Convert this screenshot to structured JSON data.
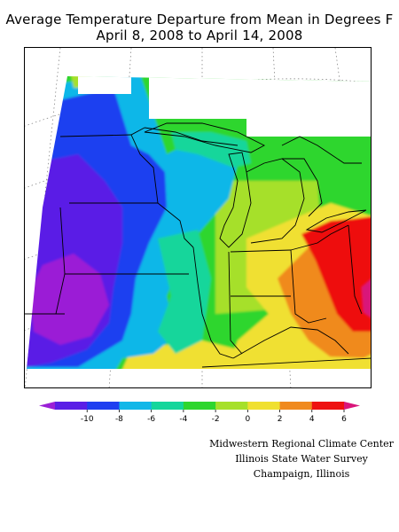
{
  "title_line1": "Average Temperature Departure from Mean in Degrees F",
  "title_line2": "April 8, 2008 to April 14, 2008",
  "legend": {
    "colors": [
      "#9b1fd6",
      "#5a1fe6",
      "#1f3ff0",
      "#11b7e8",
      "#14d69b",
      "#2ed62e",
      "#a6e02a",
      "#f0e030",
      "#f08a1f",
      "#ee1111",
      "#d9157a"
    ],
    "ticks": [
      "-10",
      "-8",
      "-6",
      "-4",
      "-2",
      "0",
      "2",
      "4",
      "6"
    ]
  },
  "credits": {
    "line1": "Midwestern Regional Climate Center",
    "line2": "Illinois State Water Survey",
    "line3": "Champaign, Illinois"
  }
}
